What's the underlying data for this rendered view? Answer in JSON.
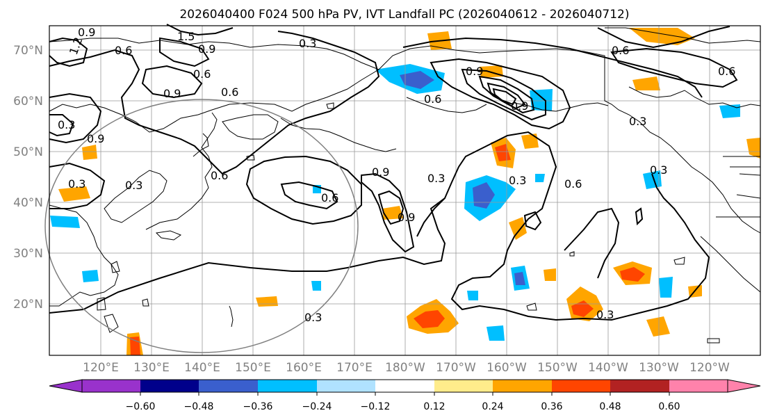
{
  "title": "2026040400 F024 500 hPa PV, IVT Landfall PC (2026040612 - 2026040712)",
  "map": {
    "lat_labels": [
      "70°N",
      "60°N",
      "50°N",
      "40°N",
      "30°N",
      "20°N"
    ],
    "lon_labels": [
      "120°E",
      "130°E",
      "140°E",
      "150°E",
      "160°E",
      "170°E",
      "180°W",
      "170°W",
      "160°W",
      "150°W",
      "140°W",
      "130°W",
      "120°W"
    ],
    "contour_labels": [
      "0.9",
      "1.2",
      "1.5",
      "0.6",
      "0.3",
      "0.9",
      "0.6",
      "0.9",
      "0.6",
      "0.3",
      "0.3",
      "0.9",
      "0.6",
      "0.9",
      "0.6",
      "0.9",
      "0.3",
      "0.3",
      "0.6",
      "0.9",
      "0.6",
      "0.3",
      "0.6",
      "0.3",
      "0.3",
      "0.6",
      "0.3",
      "0.9",
      "0.3"
    ],
    "colors": {
      "land_outline": "#000000",
      "contour": "#000000",
      "grid": "#999999",
      "circle": "#808080"
    }
  },
  "colorbar": {
    "bins": [
      "#9932cc",
      "#00008b",
      "#3a5fcd",
      "#00bfff",
      "#b0e2ff",
      "#ffffff",
      "#ffec8b",
      "#ffa500",
      "#ff4500",
      "#b22222",
      "#ff82ab"
    ],
    "ticks": [
      "−0.60",
      "−0.48",
      "−0.36",
      "−0.24",
      "−0.12",
      "0.12",
      "0.24",
      "0.36",
      "0.48",
      "0.60"
    ]
  }
}
